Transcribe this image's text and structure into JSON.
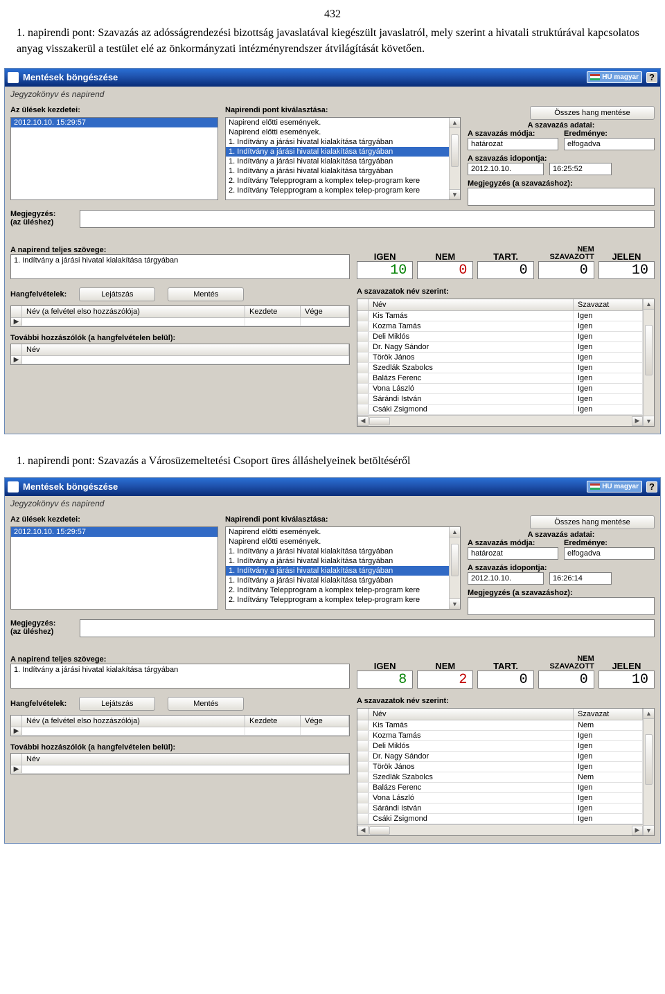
{
  "page": {
    "number": "432",
    "intro1": "1. napirendi pont: Szavazás az adósságrendezési bizottság javaslatával kiegészült javaslatról, mely szerint a hivatali struktúrával kapcsolatos anyag visszakerül a testület elé az önkormányzati intézményrendszer átvilágítását követően.",
    "intro2": "1. napirendi pont: Szavazás a Városüzemeltetési Csoport üres álláshelyeinek betöltéséről"
  },
  "common": {
    "window_title": "Mentések böngészése",
    "lang_label": "HU magyar",
    "subtitle": "Jegyzokönyv és napirend",
    "labels": {
      "sessions": "Az ülések kezdetei:",
      "agenda_select": "Napirendi pont kiválasztása:",
      "save_all": "Összes hang mentése",
      "vote_data": "A szavazás adatai:",
      "vote_mode": "A szavazás módja:",
      "result": "Eredménye:",
      "vote_time": "A szavazás idopontja:",
      "note_vote": "Megjegyzés (a szavazáshoz):",
      "note_session": "Megjegyzés:\n(az üléshez)",
      "note_session_a": "Megjegyzés:",
      "note_session_b": "(az üléshez)",
      "full_text": "A napirend teljes szövege:",
      "by_name": "A szavazatok név szerint:",
      "recordings": "Hangfelvételek:",
      "play": "Lejátszás",
      "save": "Mentés",
      "rec_col1": "Név (a felvétel elso hozzászólója)",
      "rec_col2": "Kezdete",
      "rec_col3": "Vége",
      "more_speakers": "További hozzászólók (a hangfelvételen belül):",
      "name_col": "Név",
      "vote_col": "Szavazat"
    },
    "heads": {
      "igen": "IGEN",
      "nem": "NEM",
      "tart": "TART.",
      "nemszav_top": "NEM",
      "nemszav_bot": "SZAVAZOTT",
      "jelen": "JELEN"
    },
    "session_datetime": "2012.10.10.   15:29:57",
    "agenda_items": [
      "Napirend előtti események.",
      "Napirend előtti események.",
      "1. Indítvány a járási hivatal kialakítása tárgyában",
      "1. Indítvány a járási hivatal kialakítása tárgyában",
      "1. Indítvány a járási hivatal kialakítása tárgyában",
      "1. Indítvány a járási hivatal kialakítása tárgyában",
      "2. Indítvány Telepprogram a komplex telep-program kere",
      "2. Indítvány Telepprogram a komplex telep-program kere"
    ],
    "full_text_value": "1. Indítvány a járási hivatal kialakítása tárgyában",
    "vote_mode_value": "határozat",
    "result_value": "elfogadva",
    "vote_date": "2012.10.10."
  },
  "panel1": {
    "agenda_selected_index": 3,
    "vote_time": "16:25:52",
    "counts": {
      "igen": "10",
      "nem": "0",
      "tart": "0",
      "nemszav": "0",
      "jelen": "10"
    },
    "votes": [
      [
        "Kis Tamás",
        "Igen"
      ],
      [
        "Kozma Tamás",
        "Igen"
      ],
      [
        "Deli Miklós",
        "Igen"
      ],
      [
        "Dr. Nagy Sándor",
        "Igen"
      ],
      [
        "Török János",
        "Igen"
      ],
      [
        "Szedlák Szabolcs",
        "Igen"
      ],
      [
        "Balázs Ferenc",
        "Igen"
      ],
      [
        "Vona László",
        "Igen"
      ],
      [
        "Sárándi István",
        "Igen"
      ],
      [
        "Csáki Zsigmond",
        "Igen"
      ]
    ]
  },
  "panel2": {
    "agenda_selected_index": 4,
    "vote_time": "16:26:14",
    "counts": {
      "igen": "8",
      "nem": "2",
      "tart": "0",
      "nemszav": "0",
      "jelen": "10"
    },
    "votes": [
      [
        "Kis Tamás",
        "Nem"
      ],
      [
        "Kozma Tamás",
        "Igen"
      ],
      [
        "Deli Miklós",
        "Igen"
      ],
      [
        "Dr. Nagy Sándor",
        "Igen"
      ],
      [
        "Török János",
        "Igen"
      ],
      [
        "Szedlák Szabolcs",
        "Nem"
      ],
      [
        "Balázs Ferenc",
        "Igen"
      ],
      [
        "Vona László",
        "Igen"
      ],
      [
        "Sárándi István",
        "Igen"
      ],
      [
        "Csáki Zsigmond",
        "Igen"
      ]
    ]
  },
  "style": {
    "titlebar_grad_top": "#2a6fd4",
    "titlebar_grad_bot": "#0a2e7a",
    "panel_bg": "#d4d0c8",
    "field_border": "#7f7f7f",
    "select_bg": "#316ac5",
    "igen_color": "#008000",
    "nem_color": "#c00000"
  }
}
